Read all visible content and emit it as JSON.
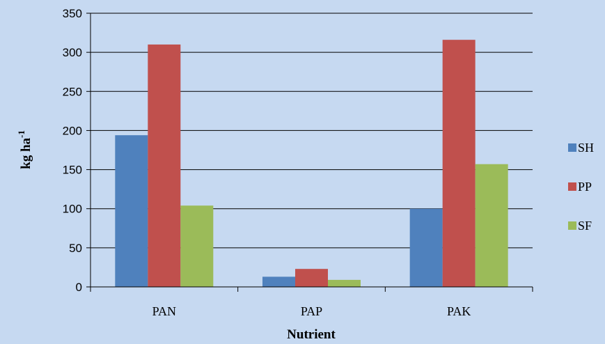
{
  "chart_data": {
    "type": "bar",
    "categories": [
      "PAN",
      "PAP",
      "PAK"
    ],
    "series": [
      {
        "name": "SH",
        "values": [
          194,
          13,
          100
        ],
        "color": "#4f81bd"
      },
      {
        "name": "PP",
        "values": [
          310,
          23,
          316
        ],
        "color": "#c0504d"
      },
      {
        "name": "SF",
        "values": [
          104,
          9,
          157
        ],
        "color": "#9bbb59"
      }
    ],
    "xlabel": "Nutrient",
    "ylabel": {
      "base": "kg ha",
      "superscript": "-1"
    },
    "ylim": [
      0,
      350
    ],
    "yticks": [
      0,
      50,
      100,
      150,
      200,
      250,
      300,
      350
    ],
    "grid": true,
    "legend": "right",
    "background": "#c6d9f1",
    "gridline_color": "#000000"
  }
}
